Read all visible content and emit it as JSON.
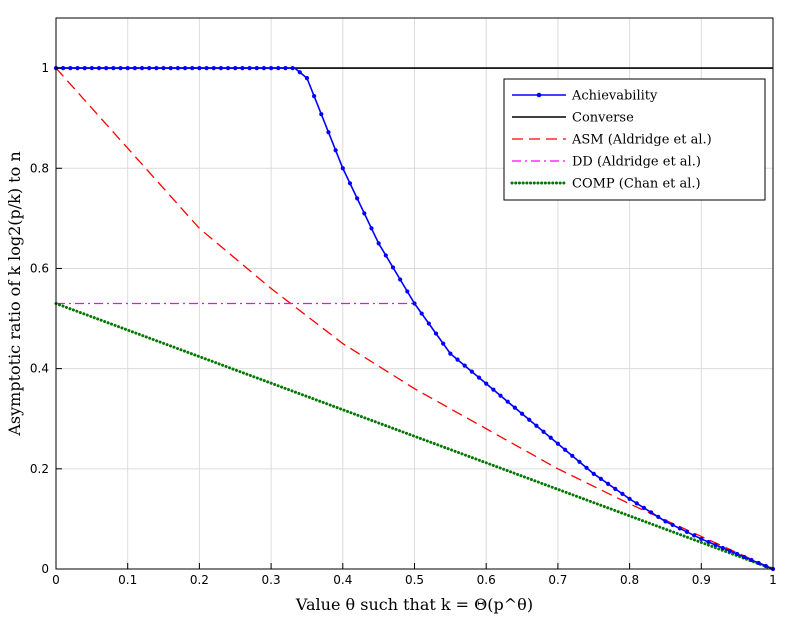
{
  "chart_data": {
    "type": "line",
    "xlabel": "Value θ such that k = Θ(p^θ)",
    "ylabel": "Asymptotic ratio of k log2(p/k) to n",
    "xlim": [
      0,
      1
    ],
    "ylim": [
      0,
      1.1
    ],
    "x_ticks": [
      0,
      0.1,
      0.2,
      0.3,
      0.4,
      0.5,
      0.6,
      0.7,
      0.8,
      0.9,
      1
    ],
    "x_tick_labels": [
      "0",
      "0.1",
      "0.2",
      "0.3",
      "0.4",
      "0.5",
      "0.6",
      "0.7",
      "0.8",
      "0.9",
      "1"
    ],
    "y_ticks": [
      0,
      0.2,
      0.4,
      0.6,
      0.8,
      1
    ],
    "y_tick_labels": [
      "0",
      "0.2",
      "0.4",
      "0.6",
      "0.8",
      "1"
    ],
    "grid": true,
    "legend_position": "top-right",
    "series": [
      {
        "name": "Achievability",
        "color": "#0000ff",
        "style": "solid-dots",
        "x": [
          0,
          0.1,
          0.2,
          0.3,
          0.333,
          0.35,
          0.4,
          0.45,
          0.5,
          0.55,
          0.6,
          0.65,
          0.7,
          0.75,
          0.8,
          0.85,
          0.9,
          0.95,
          1.0
        ],
        "y": [
          1,
          1,
          1,
          1,
          1,
          0.98,
          0.8,
          0.65,
          0.53,
          0.43,
          0.37,
          0.31,
          0.25,
          0.19,
          0.14,
          0.095,
          0.06,
          0.03,
          0
        ]
      },
      {
        "name": "Converse",
        "color": "#000000",
        "style": "solid",
        "x": [
          0,
          1
        ],
        "y": [
          1,
          1
        ]
      },
      {
        "name": "ASM (Aldridge et al.)",
        "color": "#ff0000",
        "style": "dashed",
        "x": [
          0,
          0.1,
          0.2,
          0.3,
          0.4,
          0.5,
          0.6,
          0.7,
          0.8,
          0.9,
          1.0
        ],
        "y": [
          1.0,
          0.84,
          0.68,
          0.56,
          0.45,
          0.36,
          0.28,
          0.2,
          0.13,
          0.065,
          0
        ]
      },
      {
        "name": "DD (Aldridge et al.)",
        "color": "#ff00ff",
        "style": "dashdot",
        "x": [
          0,
          0.5,
          0.55,
          0.6,
          0.65,
          0.7,
          0.75,
          0.8,
          0.85,
          0.9,
          0.95,
          1.0
        ],
        "y": [
          0.53,
          0.53,
          0.43,
          0.37,
          0.31,
          0.25,
          0.19,
          0.14,
          0.095,
          0.06,
          0.03,
          0
        ]
      },
      {
        "name": "COMP (Chan et al.)",
        "color": "#007700",
        "style": "dotted",
        "x": [
          0,
          1
        ],
        "y": [
          0.53,
          0
        ]
      }
    ]
  }
}
